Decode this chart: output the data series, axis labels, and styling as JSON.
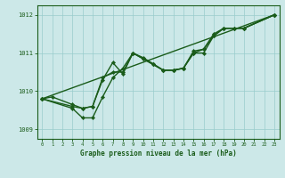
{
  "title": "Graphe pression niveau de la mer (hPa)",
  "bg_color": "#cce8e8",
  "line_color": "#1a5c1a",
  "grid_color": "#99cccc",
  "x_ticks": [
    0,
    1,
    2,
    3,
    4,
    5,
    6,
    7,
    8,
    9,
    10,
    11,
    12,
    13,
    14,
    15,
    16,
    17,
    18,
    19,
    20,
    21,
    22,
    23
  ],
  "ylim": [
    1008.75,
    1012.25
  ],
  "yticks": [
    1009,
    1010,
    1011,
    1012
  ],
  "series": [
    {
      "x": [
        0,
        1,
        3,
        4,
        5,
        6,
        7,
        8,
        9,
        10,
        11,
        12,
        13,
        14,
        15,
        16,
        17,
        18,
        19,
        20,
        23
      ],
      "y": [
        1009.8,
        1009.85,
        1009.65,
        1009.55,
        1009.6,
        1010.3,
        1010.75,
        1010.45,
        1011.0,
        1010.85,
        1010.7,
        1010.55,
        1010.55,
        1010.6,
        1011.0,
        1011.1,
        1011.45,
        1011.65,
        1011.65,
        1011.65,
        1012.0
      ]
    },
    {
      "x": [
        0,
        3,
        4,
        5,
        6,
        7,
        8,
        9,
        10,
        11,
        12,
        13,
        14,
        15,
        16,
        17,
        18,
        19,
        20,
        23
      ],
      "y": [
        1009.8,
        1009.55,
        1009.3,
        1009.3,
        1009.85,
        1010.35,
        1010.6,
        1011.0,
        1010.88,
        1010.72,
        1010.55,
        1010.55,
        1010.6,
        1011.0,
        1011.0,
        1011.45,
        1011.65,
        1011.65,
        1011.65,
        1012.0
      ]
    },
    {
      "x": [
        0,
        3,
        4,
        5,
        6,
        7,
        8,
        9,
        10,
        11,
        12,
        13,
        14,
        15,
        16,
        17,
        18,
        19,
        20,
        23
      ],
      "y": [
        1009.8,
        1009.6,
        1009.55,
        1009.6,
        1010.35,
        1010.5,
        1010.5,
        1011.0,
        1010.85,
        1010.7,
        1010.55,
        1010.55,
        1010.6,
        1011.05,
        1011.1,
        1011.5,
        1011.65,
        1011.65,
        1011.65,
        1012.0
      ]
    },
    {
      "x": [
        0,
        23
      ],
      "y": [
        1009.8,
        1012.0
      ]
    }
  ],
  "marker_size": 2.2,
  "line_width": 1.0
}
